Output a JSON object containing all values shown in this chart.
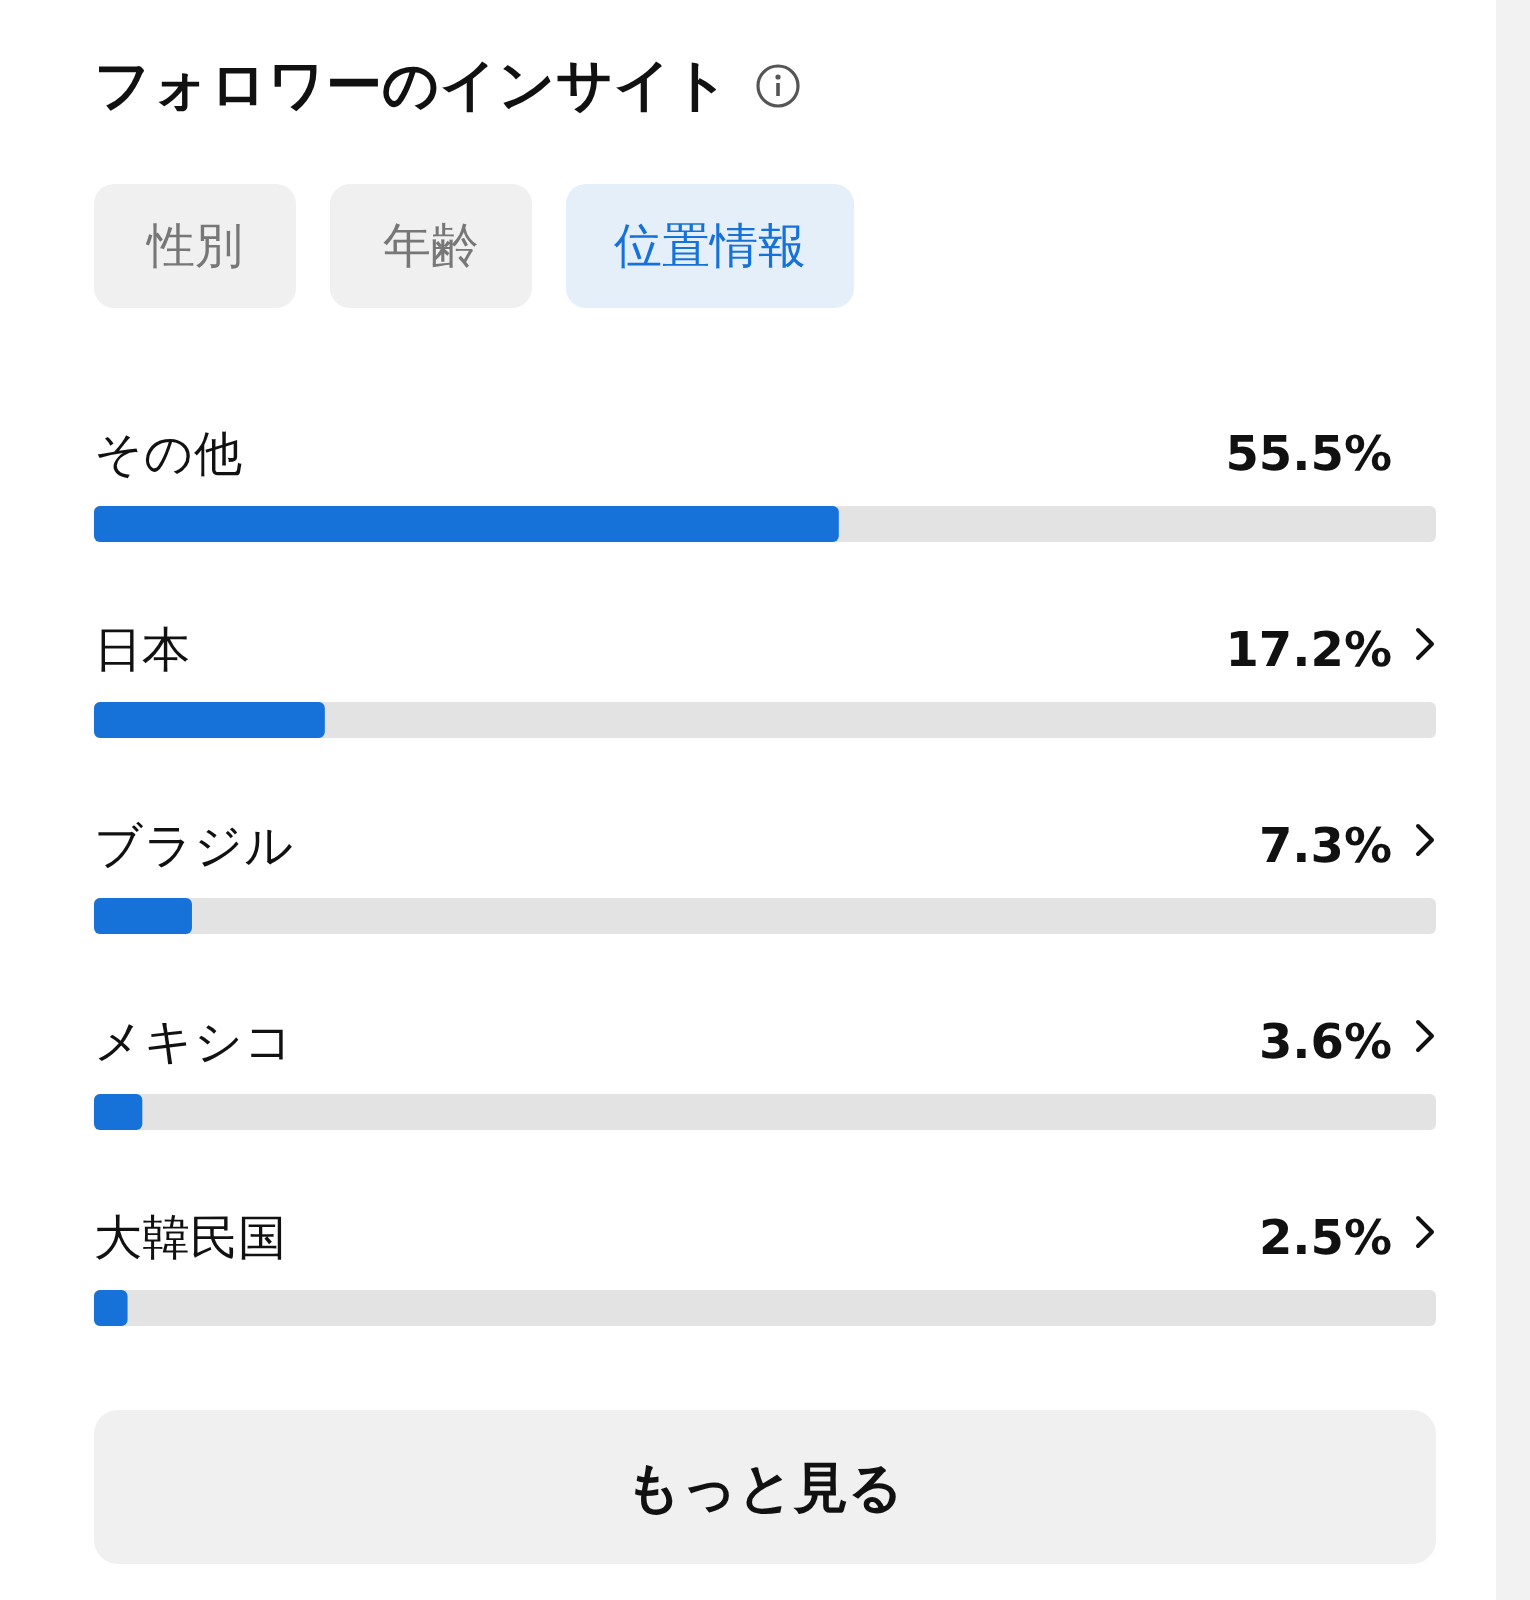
{
  "chart_data": {
    "type": "bar",
    "orientation": "horizontal",
    "title": "フォロワーのインサイト",
    "categories": [
      "その他",
      "日本",
      "ブラジル",
      "メキシコ",
      "大韓民国"
    ],
    "values": [
      55.5,
      17.2,
      7.3,
      3.6,
      2.5
    ],
    "value_labels": [
      "55.5%",
      "17.2%",
      "7.3%",
      "3.6%",
      "2.5%"
    ],
    "color": "#1672d8",
    "xlim": [
      0,
      100
    ],
    "tick_labels": false,
    "annotations": [
      "性別",
      "年齢",
      "位置情報",
      "もっと見る"
    ]
  }
}
